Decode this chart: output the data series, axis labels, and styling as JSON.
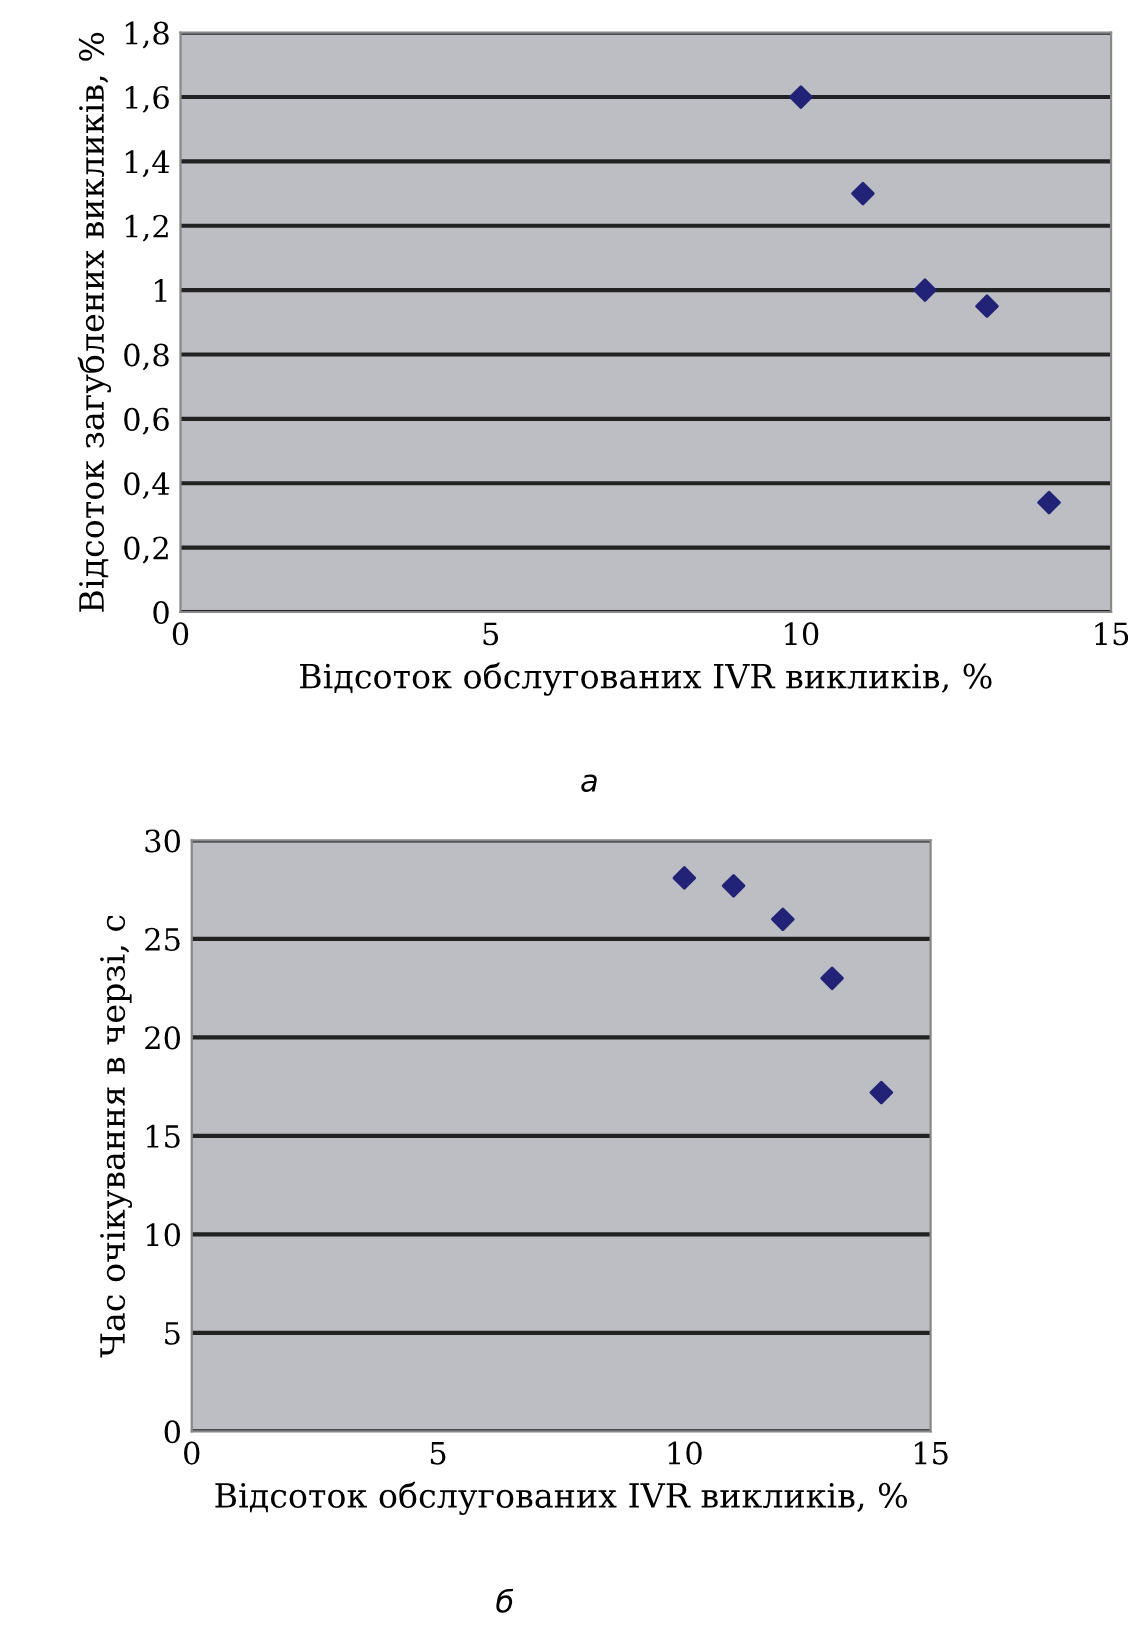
{
  "chart_data": [
    {
      "type": "scatter",
      "xlabel": "Відсоток обслугованих IVR викликів, %",
      "ylabel": "Відсоток загублених викликів, %",
      "annotations": [
        "а"
      ],
      "x": [
        10,
        11,
        12,
        13,
        14
      ],
      "series": [
        {
          "color": "#222277",
          "values": [
            1.6,
            1.3,
            1.0,
            0.95,
            0.34
          ]
        }
      ],
      "xlim": [
        0,
        15
      ],
      "xticks": [
        0,
        5,
        10,
        15
      ],
      "ylim": [
        0,
        1.8
      ],
      "yticks": [
        {
          "value": 0,
          "label": "0"
        },
        {
          "value": 0.2,
          "label": "0,2"
        },
        {
          "value": 0.4,
          "label": "0,4"
        },
        {
          "value": 0.6,
          "label": "0,6"
        },
        {
          "value": 0.8,
          "label": "0,8"
        },
        {
          "value": 1,
          "label": "1"
        },
        {
          "value": 1.2,
          "label": "1,2"
        },
        {
          "value": 1.4,
          "label": "1,4"
        },
        {
          "value": 1.6,
          "label": "1,6"
        },
        {
          "value": 1.8,
          "label": "1,8"
        }
      ],
      "grid": "y",
      "marker": "diamond"
    },
    {
      "type": "scatter",
      "xlabel": "Відсоток обслугованих IVR викликів, %",
      "ylabel": "Час очікування в черзі, с",
      "annotations": [
        "б"
      ],
      "x": [
        10,
        11,
        12,
        13,
        14
      ],
      "series": [
        {
          "color": "#222277",
          "values": [
            28.1,
            27.7,
            26.0,
            23.0,
            17.2
          ]
        }
      ],
      "xlim": [
        0,
        15
      ],
      "xticks": [
        0,
        5,
        10,
        15
      ],
      "ylim": [
        0,
        30
      ],
      "yticks": [
        0,
        5,
        10,
        15,
        20,
        25,
        30
      ],
      "grid": "y",
      "marker": "diamond"
    }
  ]
}
